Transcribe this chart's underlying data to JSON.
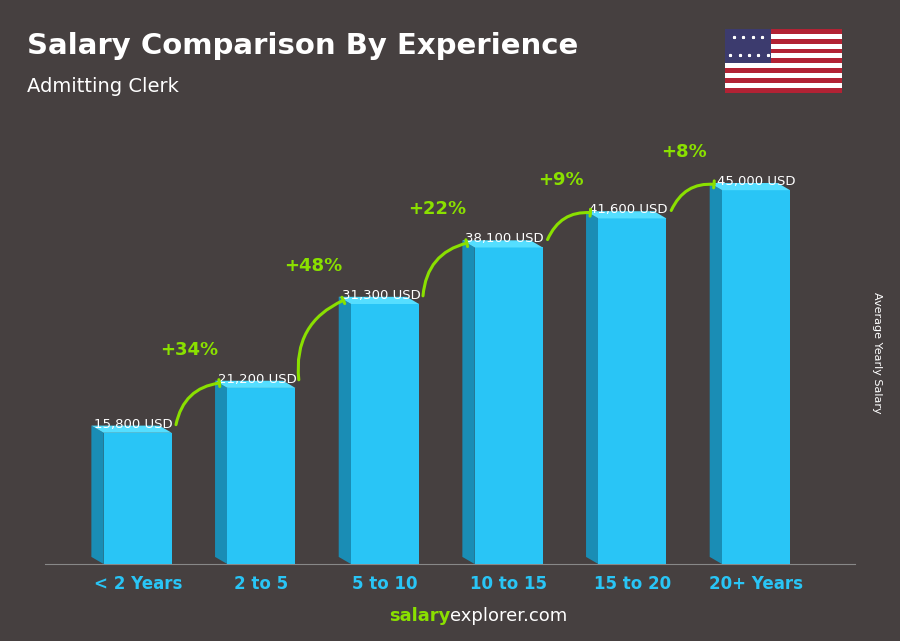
{
  "categories": [
    "< 2 Years",
    "2 to 5",
    "5 to 10",
    "10 to 15",
    "15 to 20",
    "20+ Years"
  ],
  "values": [
    15800,
    21200,
    31300,
    38100,
    41600,
    45000
  ],
  "value_labels": [
    "15,800 USD",
    "21,200 USD",
    "31,300 USD",
    "38,100 USD",
    "41,600 USD",
    "45,000 USD"
  ],
  "pct_changes": [
    "+34%",
    "+48%",
    "+22%",
    "+9%",
    "+8%"
  ],
  "bar_color_face": "#29C5F6",
  "bar_color_side": "#1A8DB5",
  "bar_color_top": "#55DEFF",
  "title_line1": "Salary Comparison By Experience",
  "title_line2": "Admitting Clerk",
  "ylabel": "Average Yearly Salary",
  "footer_bold": "salary",
  "footer_normal": "explorer.com",
  "text_color": "#ffffff",
  "green_color": "#8AE000",
  "tick_color": "#29C5F6",
  "ylim": [
    0,
    54000
  ],
  "bar_width": 0.55,
  "bg_color": "#4a4a4a",
  "bg_top_color": "#5a5a5a",
  "bg_bottom_color": "#3a3535"
}
